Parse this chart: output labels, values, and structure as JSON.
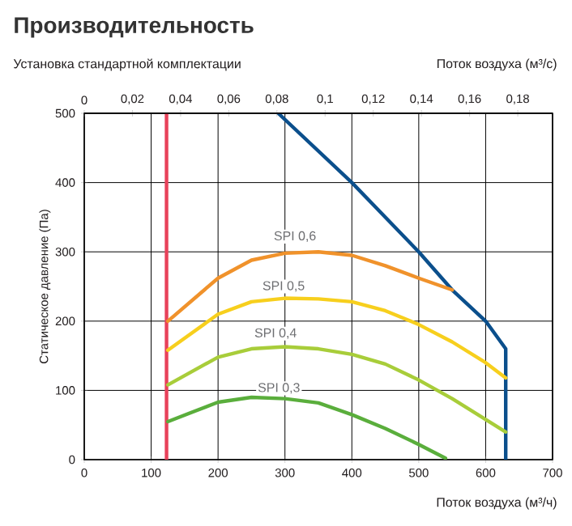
{
  "chart_data": {
    "type": "line",
    "title": "Производительность",
    "subtitle": "Установка стандартной комплектации",
    "xlabel": "Поток воздуха (м³/ч)",
    "ylabel": "Статическое давление (Па)",
    "x2label": "Поток воздуха (м³/с)",
    "xlim": [
      0,
      700
    ],
    "xticks": [
      0,
      100,
      200,
      300,
      400,
      500,
      600,
      700
    ],
    "ylim": [
      0,
      500
    ],
    "yticks": [
      0,
      100,
      200,
      300,
      400,
      500
    ],
    "x2lim": [
      0,
      0.19444
    ],
    "x2ticks": [
      0,
      {
        "value": 0.02,
        "label": "0,02"
      },
      {
        "value": 0.04,
        "label": "0,04"
      },
      {
        "value": 0.06,
        "label": "0,06"
      },
      {
        "value": 0.08,
        "label": "0,08"
      },
      {
        "value": 0.1,
        "label": "0,1"
      },
      {
        "value": 0.12,
        "label": "0,12"
      },
      {
        "value": 0.14,
        "label": "0,14"
      },
      {
        "value": 0.16,
        "label": "0,16"
      },
      {
        "value": 0.18,
        "label": "0,18"
      }
    ],
    "grid": true,
    "marker": "none",
    "line_style": "solid",
    "series": [
      {
        "color": "#0b4f8c",
        "x": [
          290,
          400,
          500,
          550,
          600,
          630,
          630
        ],
        "values": [
          500,
          400,
          300,
          245,
          200,
          160,
          0
        ]
      },
      {
        "color": "#f0922b",
        "x": [
          125,
          200,
          250,
          300,
          350,
          400,
          450,
          500,
          550
        ],
        "values": [
          200,
          262,
          288,
          298,
          300,
          295,
          280,
          262,
          245
        ]
      },
      {
        "color": "#f7cf1d",
        "x": [
          125,
          200,
          250,
          300,
          350,
          400,
          450,
          500,
          550,
          600,
          630
        ],
        "values": [
          158,
          210,
          228,
          233,
          232,
          228,
          215,
          195,
          170,
          140,
          118
        ]
      },
      {
        "color": "#a8cd3a",
        "x": [
          125,
          200,
          250,
          300,
          350,
          400,
          450,
          500,
          550,
          600,
          630
        ],
        "values": [
          108,
          148,
          160,
          163,
          160,
          152,
          138,
          115,
          88,
          58,
          40
        ]
      },
      {
        "color": "#5aae3c",
        "x": [
          125,
          200,
          250,
          300,
          350,
          400,
          450,
          500,
          540
        ],
        "values": [
          55,
          83,
          90,
          88,
          82,
          65,
          45,
          22,
          2
        ]
      }
    ],
    "ref_lines": [
      {
        "axis": "x",
        "value": 123,
        "color": "#e8415a"
      }
    ],
    "annotations": [
      {
        "text": "SPI 0,6",
        "x": 315,
        "y": 322
      },
      {
        "text": "SPI 0,5",
        "x": 298,
        "y": 250
      },
      {
        "text": "SPI 0,4",
        "x": 286,
        "y": 182
      },
      {
        "text": "SPI 0,3",
        "x": 291,
        "y": 103
      }
    ]
  }
}
